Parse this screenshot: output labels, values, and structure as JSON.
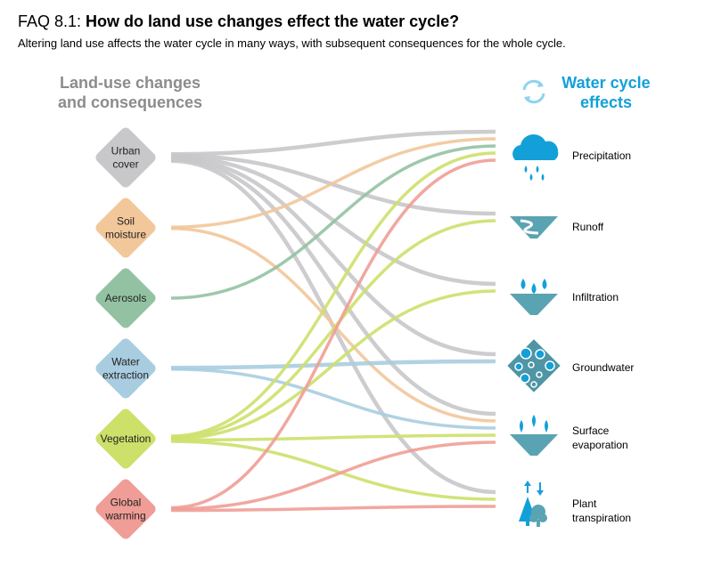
{
  "header": {
    "title_prefix": "FAQ 8.1: ",
    "title_main": "How do land use changes effect the water cycle?",
    "subtitle": "Altering land use affects the water cycle in many ways, with subsequent consequences for the whole cycle."
  },
  "left_heading": [
    "Land-use changes",
    "and consequences"
  ],
  "right_heading": [
    "Water cycle",
    "effects"
  ],
  "land_uses": [
    {
      "id": "urban",
      "lines": [
        "Urban",
        "cover"
      ],
      "color": "#c8c8ca"
    },
    {
      "id": "soil",
      "lines": [
        "Soil",
        "moisture"
      ],
      "color": "#f2c79a"
    },
    {
      "id": "aerosols",
      "lines": [
        "Aerosols"
      ],
      "color": "#93c2a3"
    },
    {
      "id": "water",
      "lines": [
        "Water",
        "extraction"
      ],
      "color": "#a9cde0"
    },
    {
      "id": "vegetation",
      "lines": [
        "Vegetation"
      ],
      "color": "#cde06a"
    },
    {
      "id": "warming",
      "lines": [
        "Global",
        "warming"
      ],
      "color": "#ef9d96"
    }
  ],
  "effects": [
    {
      "id": "precipitation",
      "lines": [
        "Precipitation"
      ],
      "icon": "rain-cloud-icon"
    },
    {
      "id": "runoff",
      "lines": [
        "Runoff"
      ],
      "icon": "runoff-icon"
    },
    {
      "id": "infiltration",
      "lines": [
        "Infiltration"
      ],
      "icon": "infiltration-icon"
    },
    {
      "id": "groundwater",
      "lines": [
        "Groundwater"
      ],
      "icon": "groundwater-icon"
    },
    {
      "id": "surface_evaporation",
      "lines": [
        "Surface",
        "evaporation"
      ],
      "icon": "evaporation-icon"
    },
    {
      "id": "plant_transpiration",
      "lines": [
        "Plant",
        "transpiration"
      ],
      "icon": "trees-icon"
    }
  ],
  "colors": {
    "urban": "#c8c8ca",
    "soil": "#f2c79a",
    "aerosols": "#93c2a3",
    "water": "#a9cde0",
    "vegetation": "#cde06a",
    "warming": "#ef9d96",
    "accent": "#13a0d8",
    "heading_grey": "#8c8c8c"
  },
  "links": [
    {
      "from": "urban",
      "to": "precipitation",
      "weight": 2
    },
    {
      "from": "urban",
      "to": "runoff",
      "weight": 2
    },
    {
      "from": "urban",
      "to": "infiltration",
      "weight": 2
    },
    {
      "from": "urban",
      "to": "groundwater",
      "weight": 2
    },
    {
      "from": "urban",
      "to": "surface_evaporation",
      "weight": 2
    },
    {
      "from": "urban",
      "to": "plant_transpiration",
      "weight": 2
    },
    {
      "from": "soil",
      "to": "precipitation",
      "weight": 1
    },
    {
      "from": "soil",
      "to": "surface_evaporation",
      "weight": 1
    },
    {
      "from": "aerosols",
      "to": "precipitation",
      "weight": 1
    },
    {
      "from": "water",
      "to": "groundwater",
      "weight": 2
    },
    {
      "from": "water",
      "to": "surface_evaporation",
      "weight": 1
    },
    {
      "from": "vegetation",
      "to": "precipitation",
      "weight": 1
    },
    {
      "from": "vegetation",
      "to": "runoff",
      "weight": 1
    },
    {
      "from": "vegetation",
      "to": "infiltration",
      "weight": 1
    },
    {
      "from": "vegetation",
      "to": "surface_evaporation",
      "weight": 1
    },
    {
      "from": "vegetation",
      "to": "plant_transpiration",
      "weight": 1
    },
    {
      "from": "warming",
      "to": "precipitation",
      "weight": 1
    },
    {
      "from": "warming",
      "to": "surface_evaporation",
      "weight": 1
    },
    {
      "from": "warming",
      "to": "plant_transpiration",
      "weight": 1
    }
  ]
}
